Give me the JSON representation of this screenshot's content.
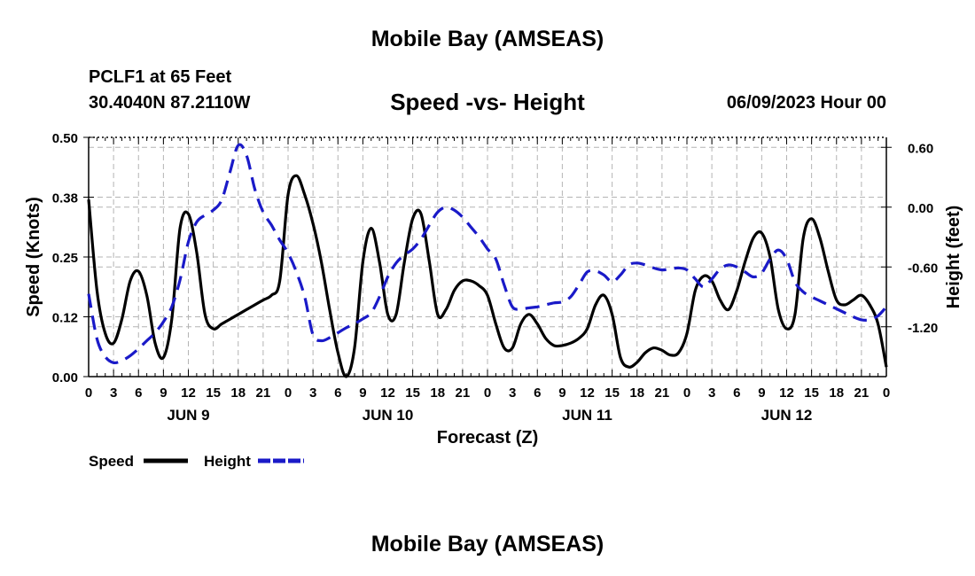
{
  "header": {
    "title": "Mobile Bay (AMSEAS)",
    "station": "PCLF1 at 65 Feet",
    "coords": "30.4040N  87.2110W",
    "subtitle": "Speed -vs- Height",
    "datetime": "06/09/2023 Hour 00"
  },
  "footer": {
    "title": "Mobile Bay (AMSEAS)"
  },
  "colors": {
    "speed": "#000000",
    "height": "#1a1ac8",
    "grid": "#b4b4b4"
  },
  "chart_data": {
    "type": "line",
    "title": "Speed -vs- Height",
    "xlabel": "Forecast (Z)",
    "ylabel": "Speed (Knots)",
    "y2label": "Height (feet)",
    "xlim": [
      0,
      96
    ],
    "ylim": [
      0,
      0.5
    ],
    "y2lim": [
      -1.7,
      0.7
    ],
    "x_ticks": [
      0,
      3,
      6,
      9,
      12,
      15,
      18,
      21,
      24,
      27,
      30,
      33,
      36,
      39,
      42,
      45,
      48,
      51,
      54,
      57,
      60,
      63,
      66,
      69,
      72,
      75,
      78,
      81,
      84,
      87,
      90,
      93,
      96
    ],
    "x_tick_labels": [
      "0",
      "3",
      "6",
      "9",
      "12",
      "15",
      "18",
      "21",
      "0",
      "3",
      "6",
      "9",
      "12",
      "15",
      "18",
      "21",
      "0",
      "3",
      "6",
      "9",
      "12",
      "15",
      "18",
      "21",
      "0",
      "3",
      "6",
      "9",
      "12",
      "15",
      "18",
      "21",
      "0"
    ],
    "day_labels": [
      {
        "x": 12,
        "label": "JUN 9"
      },
      {
        "x": 36,
        "label": "JUN 10"
      },
      {
        "x": 60,
        "label": "JUN 11"
      },
      {
        "x": 84,
        "label": "JUN 12"
      }
    ],
    "y_ticks": [
      0,
      0.125,
      0.25,
      0.375,
      0.5
    ],
    "y_tick_labels": [
      "0.00",
      "0.12",
      "0.25",
      "0.38",
      "0.50"
    ],
    "y2_ticks": [
      0.6,
      0.0,
      -0.6,
      -1.2
    ],
    "y2_tick_labels": [
      "0.60",
      "0.00",
      "-0.60",
      "-1.20"
    ],
    "grid": true,
    "legend_position": "bottom-left",
    "series": [
      {
        "name": "Speed",
        "axis": "left",
        "style": "solid",
        "x": [
          0,
          1,
          2,
          3,
          4,
          5,
          6,
          7,
          8,
          9,
          10,
          11,
          12,
          13,
          14,
          15,
          16,
          17,
          18,
          19,
          20,
          21,
          22,
          23,
          24,
          25,
          26,
          27,
          28,
          29,
          30,
          31,
          32,
          33,
          34,
          35,
          36,
          37,
          38,
          39,
          40,
          41,
          42,
          43,
          44,
          45,
          46,
          47,
          48,
          49,
          50,
          51,
          52,
          53,
          54,
          55,
          56,
          57,
          58,
          59,
          60,
          61,
          62,
          63,
          64,
          65,
          66,
          67,
          68,
          69,
          70,
          71,
          72,
          73,
          74,
          75,
          76,
          77,
          78,
          79,
          80,
          81,
          82,
          83,
          84,
          85,
          86,
          87,
          88,
          89,
          90,
          91,
          92,
          93,
          94,
          95,
          96
        ],
        "values": [
          0.37,
          0.18,
          0.09,
          0.07,
          0.12,
          0.2,
          0.22,
          0.17,
          0.07,
          0.04,
          0.12,
          0.31,
          0.34,
          0.26,
          0.13,
          0.1,
          0.11,
          0.12,
          0.13,
          0.14,
          0.15,
          0.16,
          0.17,
          0.2,
          0.38,
          0.42,
          0.38,
          0.32,
          0.24,
          0.14,
          0.05,
          0.0,
          0.06,
          0.24,
          0.31,
          0.24,
          0.13,
          0.13,
          0.24,
          0.33,
          0.34,
          0.24,
          0.13,
          0.14,
          0.18,
          0.2,
          0.2,
          0.19,
          0.17,
          0.11,
          0.06,
          0.06,
          0.11,
          0.13,
          0.11,
          0.08,
          0.065,
          0.065,
          0.07,
          0.08,
          0.1,
          0.15,
          0.17,
          0.13,
          0.04,
          0.02,
          0.03,
          0.05,
          0.06,
          0.055,
          0.045,
          0.05,
          0.09,
          0.18,
          0.21,
          0.2,
          0.16,
          0.14,
          0.18,
          0.24,
          0.29,
          0.3,
          0.25,
          0.14,
          0.1,
          0.13,
          0.29,
          0.33,
          0.29,
          0.22,
          0.16,
          0.15,
          0.16,
          0.17,
          0.15,
          0.11,
          0.02
        ]
      },
      {
        "name": "Height",
        "axis": "right",
        "style": "dashed",
        "x": [
          0,
          1,
          2,
          3,
          4,
          5,
          6,
          7,
          8,
          9,
          10,
          11,
          12,
          13,
          14,
          15,
          16,
          17,
          18,
          19,
          20,
          21,
          22,
          23,
          24,
          25,
          26,
          27,
          28,
          29,
          30,
          31,
          32,
          33,
          34,
          35,
          36,
          37,
          38,
          39,
          40,
          41,
          42,
          43,
          44,
          45,
          46,
          47,
          48,
          49,
          50,
          51,
          52,
          53,
          54,
          55,
          56,
          57,
          58,
          59,
          60,
          61,
          62,
          63,
          64,
          65,
          66,
          67,
          68,
          69,
          70,
          71,
          72,
          73,
          74,
          75,
          76,
          77,
          78,
          79,
          80,
          81,
          82,
          83,
          84,
          85,
          86,
          87,
          88,
          89,
          90,
          91,
          92,
          93,
          94,
          95,
          96
        ],
        "values": [
          -0.87,
          -1.32,
          -1.5,
          -1.56,
          -1.54,
          -1.49,
          -1.42,
          -1.34,
          -1.26,
          -1.15,
          -1.0,
          -0.73,
          -0.35,
          -0.15,
          -0.08,
          -0.03,
          0.07,
          0.35,
          0.62,
          0.52,
          0.18,
          -0.05,
          -0.18,
          -0.33,
          -0.46,
          -0.65,
          -0.9,
          -1.28,
          -1.34,
          -1.31,
          -1.26,
          -1.21,
          -1.17,
          -1.12,
          -1.06,
          -0.9,
          -0.7,
          -0.56,
          -0.48,
          -0.42,
          -0.32,
          -0.18,
          -0.05,
          0.0,
          -0.03,
          -0.1,
          -0.2,
          -0.3,
          -0.42,
          -0.52,
          -0.78,
          -1.0,
          -1.02,
          -1.01,
          -1.0,
          -0.98,
          -0.96,
          -0.95,
          -0.9,
          -0.78,
          -0.65,
          -0.64,
          -0.68,
          -0.75,
          -0.68,
          -0.58,
          -0.56,
          -0.58,
          -0.61,
          -0.63,
          -0.62,
          -0.61,
          -0.63,
          -0.72,
          -0.8,
          -0.72,
          -0.62,
          -0.58,
          -0.6,
          -0.65,
          -0.7,
          -0.66,
          -0.52,
          -0.43,
          -0.52,
          -0.75,
          -0.85,
          -0.9,
          -0.94,
          -0.98,
          -1.02,
          -1.06,
          -1.1,
          -1.13,
          -1.13,
          -1.09,
          -1.0
        ]
      }
    ]
  }
}
